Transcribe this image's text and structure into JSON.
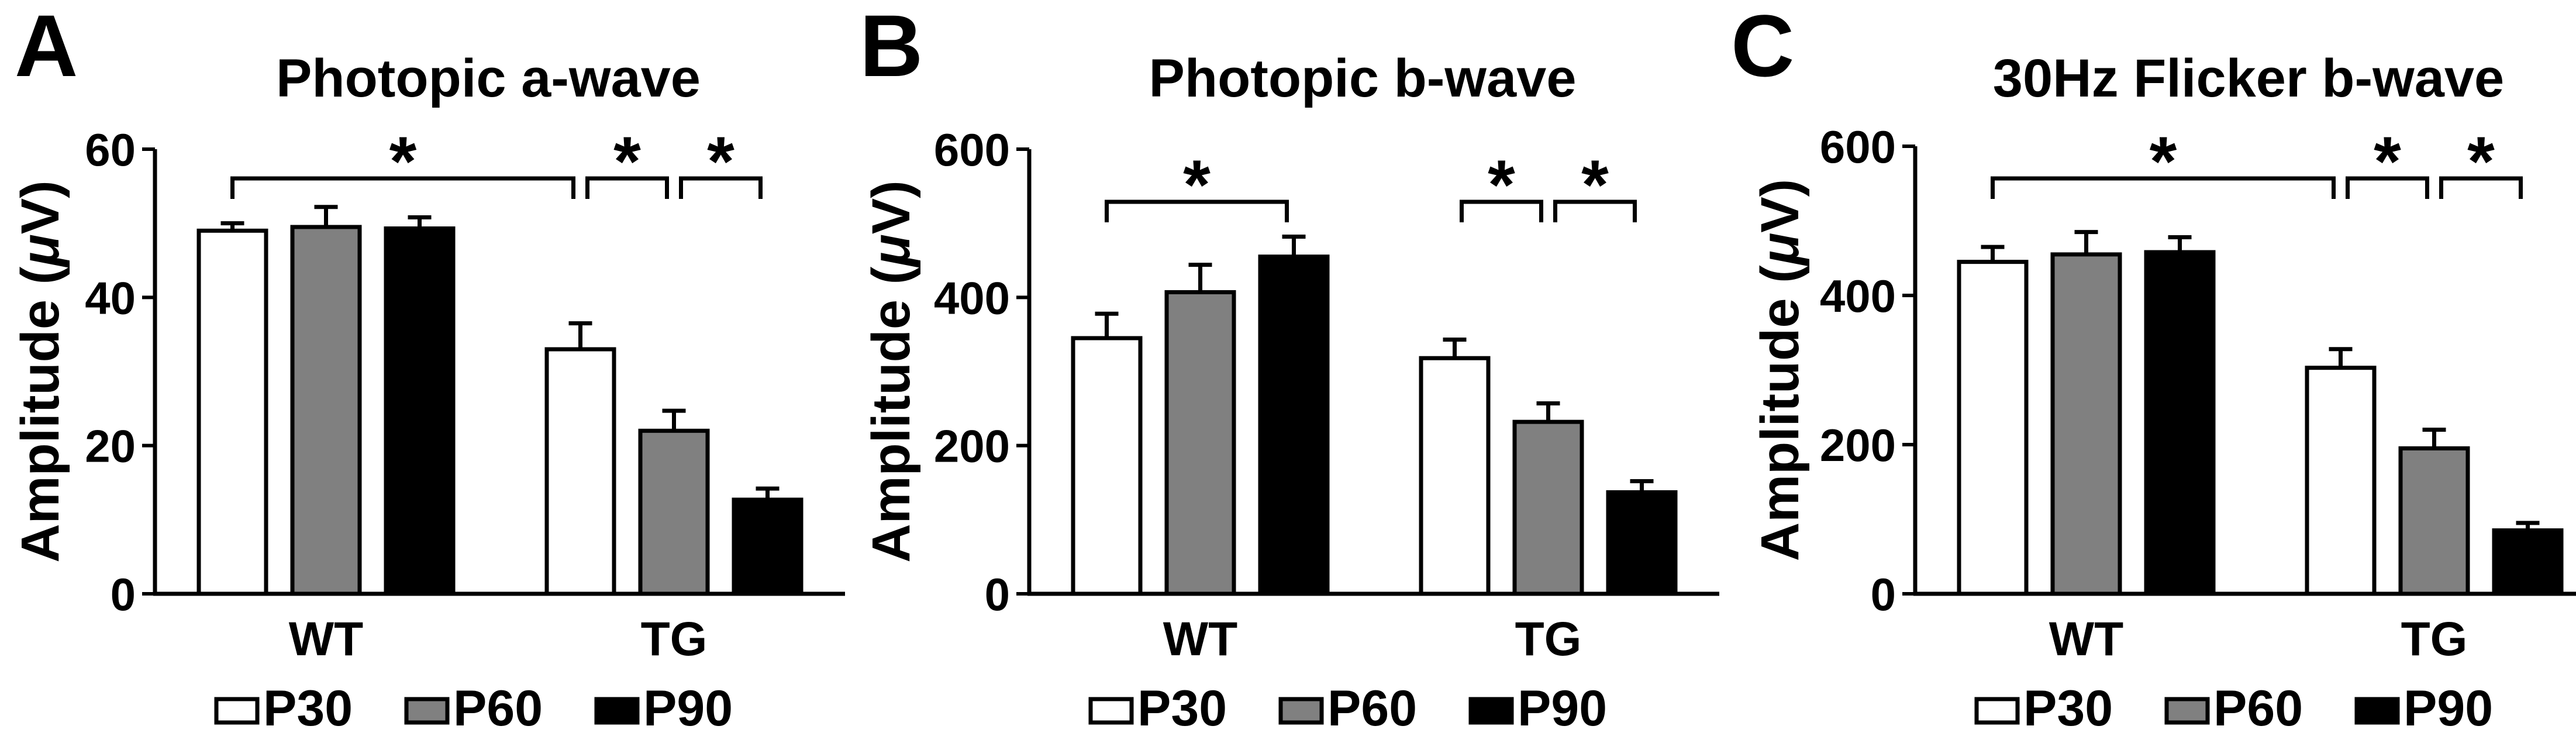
{
  "chart_data": [
    {
      "type": "bar",
      "panel_label": "A",
      "title": "Photopic a-wave",
      "ylabel_prefix": "Amplitude (",
      "ylabel_unit": "μ",
      "ylabel_suffix": "V)",
      "categories": [
        "WT",
        "TG"
      ],
      "ylim": [
        0,
        60
      ],
      "yticks": [
        0,
        20,
        40,
        60
      ],
      "series": [
        {
          "name": "P30",
          "values": [
            49,
            33
          ],
          "errors": [
            1,
            3.5
          ]
        },
        {
          "name": "P60",
          "values": [
            49.5,
            22
          ],
          "errors": [
            2.7,
            2.7
          ]
        },
        {
          "name": "P90",
          "values": [
            49.3,
            12.7
          ],
          "errors": [
            1.5,
            1.5
          ]
        }
      ],
      "significance": [
        {
          "label": "*",
          "from": "WT P30",
          "to": "TG P30"
        },
        {
          "label": "*",
          "from": "TG P30",
          "to": "TG P60"
        },
        {
          "label": "*",
          "from": "TG P60",
          "to": "TG P90"
        }
      ]
    },
    {
      "type": "bar",
      "panel_label": "B",
      "title": "Photopic b-wave",
      "ylabel_prefix": "Amplitude (",
      "ylabel_unit": "μ",
      "ylabel_suffix": "V)",
      "categories": [
        "WT",
        "TG"
      ],
      "ylim": [
        0,
        600
      ],
      "yticks": [
        0,
        200,
        400,
        600
      ],
      "series": [
        {
          "name": "P30",
          "values": [
            345,
            318
          ],
          "errors": [
            33,
            25
          ]
        },
        {
          "name": "P60",
          "values": [
            407,
            232
          ],
          "errors": [
            37,
            25
          ]
        },
        {
          "name": "P90",
          "values": [
            455,
            137
          ],
          "errors": [
            27,
            15
          ]
        }
      ],
      "significance": [
        {
          "label": "*",
          "from": "WT P30",
          "to": "WT P90"
        },
        {
          "label": "*",
          "from": "TG P30",
          "to": "TG P60"
        },
        {
          "label": "*",
          "from": "TG P60",
          "to": "TG P90"
        }
      ]
    },
    {
      "type": "bar",
      "panel_label": "C",
      "title": "30Hz Flicker b-wave",
      "ylabel_prefix": "Amplitude (",
      "ylabel_unit": "μ",
      "ylabel_suffix": "V)",
      "categories": [
        "WT",
        "TG"
      ],
      "ylim": [
        0,
        600
      ],
      "yticks": [
        0,
        200,
        400,
        600
      ],
      "series": [
        {
          "name": "P30",
          "values": [
            445,
            303
          ],
          "errors": [
            20,
            25
          ]
        },
        {
          "name": "P60",
          "values": [
            455,
            195
          ],
          "errors": [
            30,
            25
          ]
        },
        {
          "name": "P90",
          "values": [
            458,
            85
          ],
          "errors": [
            20,
            10
          ]
        }
      ],
      "significance": [
        {
          "label": "*",
          "from": "WT P30",
          "to": "TG P30"
        },
        {
          "label": "*",
          "from": "TG P30",
          "to": "TG P60"
        },
        {
          "label": "*",
          "from": "TG P60",
          "to": "TG P90"
        }
      ]
    }
  ],
  "legend": [
    {
      "name": "P30",
      "color": "#ffffff"
    },
    {
      "name": "P60",
      "color": "#808080"
    },
    {
      "name": "P90",
      "color": "#000000"
    }
  ],
  "colors": {
    "P30": "#ffffff",
    "P60": "#808080",
    "P90": "#000000",
    "stroke": "#000000"
  }
}
